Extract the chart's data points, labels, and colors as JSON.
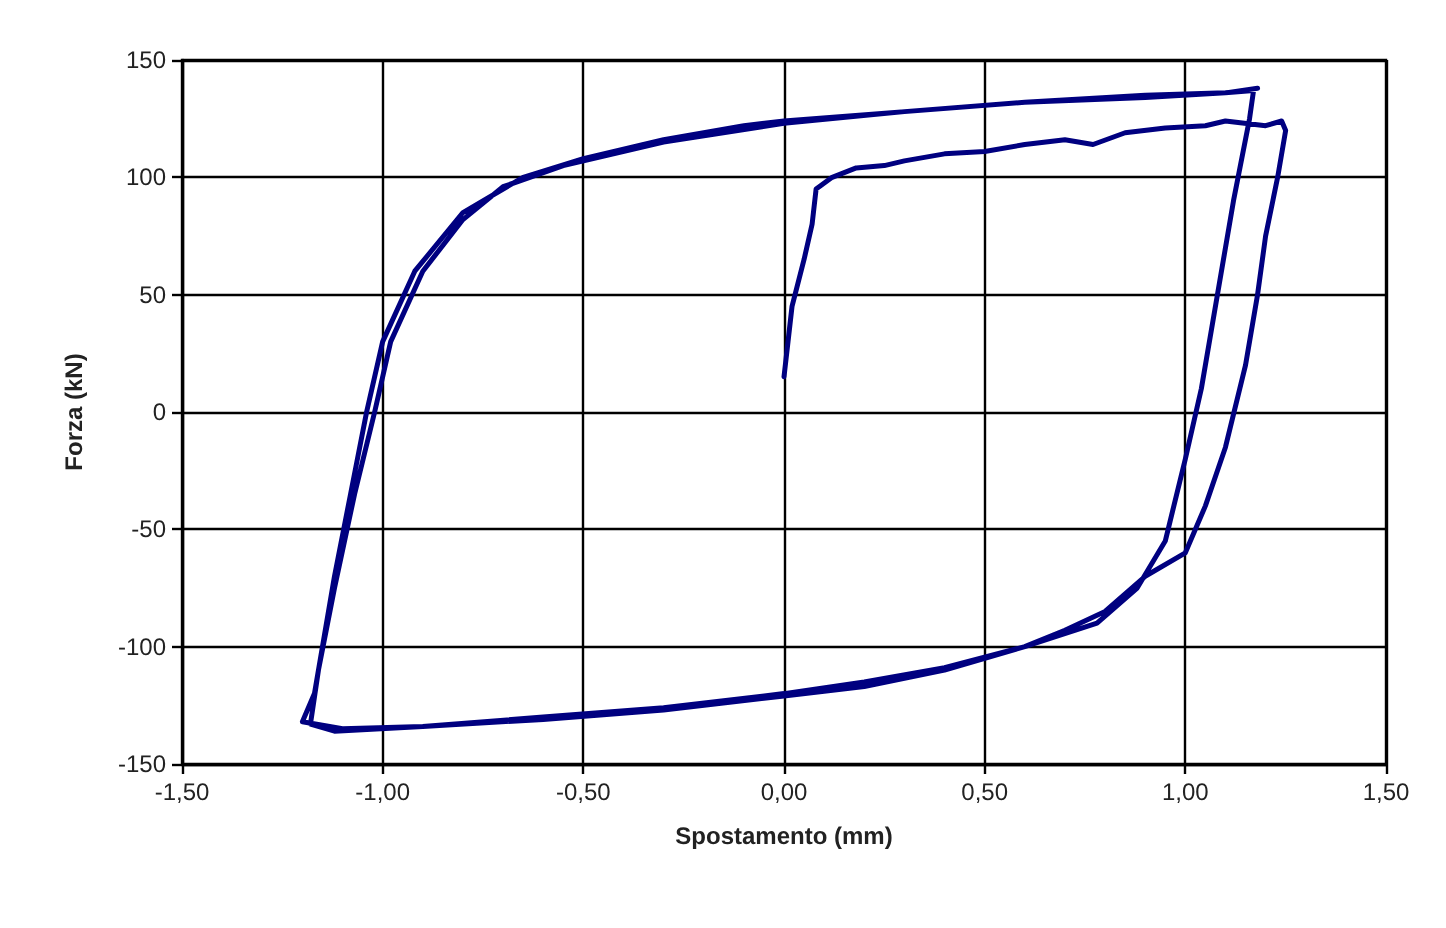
{
  "chart_data": {
    "type": "line",
    "xlabel": "Spostamento (mm)",
    "ylabel": "Forza (kN)",
    "xlim": [
      -1.5,
      1.5
    ],
    "xticks": [
      {
        "value": -1.5,
        "label": "-1,50"
      },
      {
        "value": -1,
        "label": "-1,00"
      },
      {
        "value": -0.5,
        "label": "-0,50"
      },
      {
        "value": 0,
        "label": "0,00"
      },
      {
        "value": 0.5,
        "label": "0,50"
      },
      {
        "value": 1,
        "label": "1,00"
      },
      {
        "value": 1.5,
        "label": "1,50"
      }
    ],
    "ylim": [
      -150,
      150
    ],
    "yticks": [
      -150,
      -100,
      -50,
      0,
      50,
      100,
      150
    ],
    "grid": true,
    "marker": "none",
    "line_style": "solid",
    "series": [
      {
        "color": "#000080",
        "x": [
          0,
          0.01,
          0.02,
          0.05,
          0.07,
          0.08,
          0.12,
          0.18,
          0.25,
          0.3,
          0.4,
          0.5,
          0.6,
          0.7,
          0.77,
          0.85,
          0.95,
          1.05,
          1.1,
          1.2,
          1.24,
          1.25,
          1.23,
          1.2,
          1.18,
          1.15,
          1.1,
          1.05,
          1.0,
          0.9,
          0.8,
          0.7,
          0.6,
          0.4,
          0.2,
          0,
          -0.3,
          -0.6,
          -0.9,
          -1.1,
          -1.2,
          -1.17,
          -1.15,
          -1.12,
          -1.08,
          -1.04,
          -1.0,
          -0.92,
          -0.8,
          -0.65,
          -0.5,
          -0.3,
          -0.1,
          0,
          0.3,
          0.6,
          0.9,
          1.1,
          1.17,
          1.16,
          1.12,
          1.08,
          1.04,
          1.0,
          0.95,
          0.88,
          0.78,
          0.6,
          0.4,
          0.2,
          0,
          -0.3,
          -0.6,
          -0.9,
          -1.12,
          -1.18,
          -1.16,
          -1.12,
          -1.07,
          -1.02,
          -0.98,
          -0.9,
          -0.8,
          -0.7,
          -0.55,
          -0.3,
          0,
          0.3,
          0.6,
          0.9,
          1.1,
          1.18
        ],
        "values": [
          15,
          30,
          45,
          65,
          80,
          95,
          100,
          104,
          105,
          107,
          110,
          111,
          114,
          116,
          114,
          119,
          121,
          122,
          124,
          122,
          124,
          120,
          100,
          75,
          50,
          20,
          -15,
          -40,
          -60,
          -70,
          -85,
          -93,
          -100,
          -110,
          -117,
          -121,
          -127,
          -131,
          -134,
          -135,
          -132,
          -120,
          -100,
          -70,
          -35,
          0,
          30,
          60,
          85,
          100,
          108,
          116,
          122,
          124,
          128,
          132,
          134,
          136,
          137,
          125,
          90,
          50,
          10,
          -20,
          -55,
          -75,
          -90,
          -100,
          -109,
          -115,
          -120,
          -126,
          -130,
          -134,
          -136,
          -133,
          -110,
          -75,
          -35,
          0,
          30,
          60,
          82,
          96,
          105,
          115,
          123,
          128,
          132,
          135,
          136,
          138
        ]
      }
    ]
  }
}
